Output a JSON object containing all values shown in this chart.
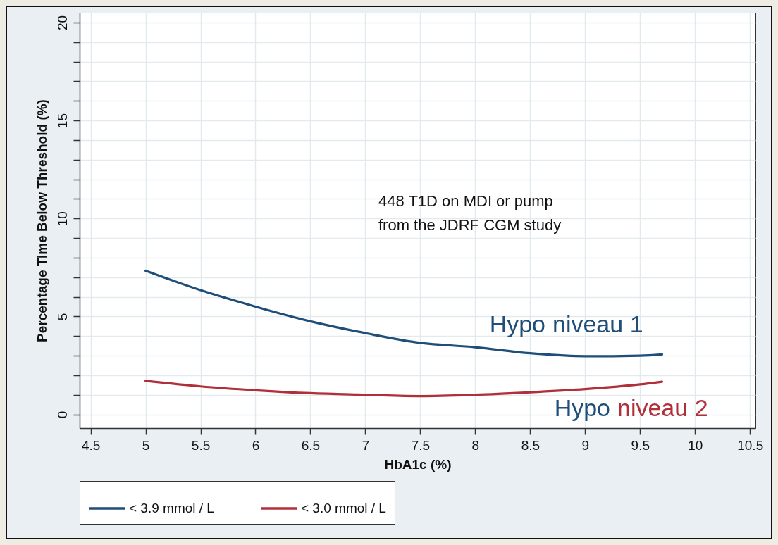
{
  "chart_data": {
    "type": "line",
    "xlabel": "HbA1c (%)",
    "ylabel": "Percentage Time Below Threshold (%)",
    "x": [
      5,
      5.5,
      6,
      6.5,
      7,
      7.5,
      8,
      8.5,
      9,
      9.5,
      9.7
    ],
    "series": [
      {
        "name": "< 3.9 mmol / L",
        "color": "#1f4e79",
        "values": [
          7.33,
          6.34,
          5.5,
          4.75,
          4.15,
          3.65,
          3.43,
          3.12,
          2.97,
          3.0,
          3.06
        ]
      },
      {
        "name": "< 3.0 mmol / L",
        "color": "#b0303a",
        "values": [
          1.71,
          1.43,
          1.23,
          1.08,
          1.0,
          0.93,
          1.0,
          1.13,
          1.29,
          1.53,
          1.67
        ]
      }
    ],
    "xlim": [
      4.4,
      10.55
    ],
    "ylim": [
      -0.7,
      20.5
    ],
    "xticks": [
      4.5,
      5,
      5.5,
      6,
      6.5,
      7,
      7.5,
      8,
      8.5,
      9,
      9.5,
      10,
      10.5
    ],
    "yticks": [
      0,
      {
        "value": 1,
        "label": null
      },
      {
        "value": 2,
        "label": null
      },
      {
        "value": 3,
        "label": null
      },
      {
        "value": 4,
        "label": null
      },
      5,
      {
        "value": 6,
        "label": null
      },
      {
        "value": 7,
        "label": null
      },
      {
        "value": 8,
        "label": null
      },
      {
        "value": 9,
        "label": null
      },
      10,
      {
        "value": 11,
        "label": null
      },
      {
        "value": 12,
        "label": null
      },
      {
        "value": 13,
        "label": null
      },
      {
        "value": 14,
        "label": null
      },
      15,
      {
        "value": 16,
        "label": null
      },
      {
        "value": 17,
        "label": null
      },
      {
        "value": 18,
        "label": null
      },
      {
        "value": 19,
        "label": null
      },
      20
    ],
    "grid": true,
    "legend": "bottom",
    "annotations": [
      "448 T1D on MDI or pump\nfrom the JDRF CGM study",
      "Hypo niveau 1",
      "Hypo niveau 2"
    ]
  }
}
